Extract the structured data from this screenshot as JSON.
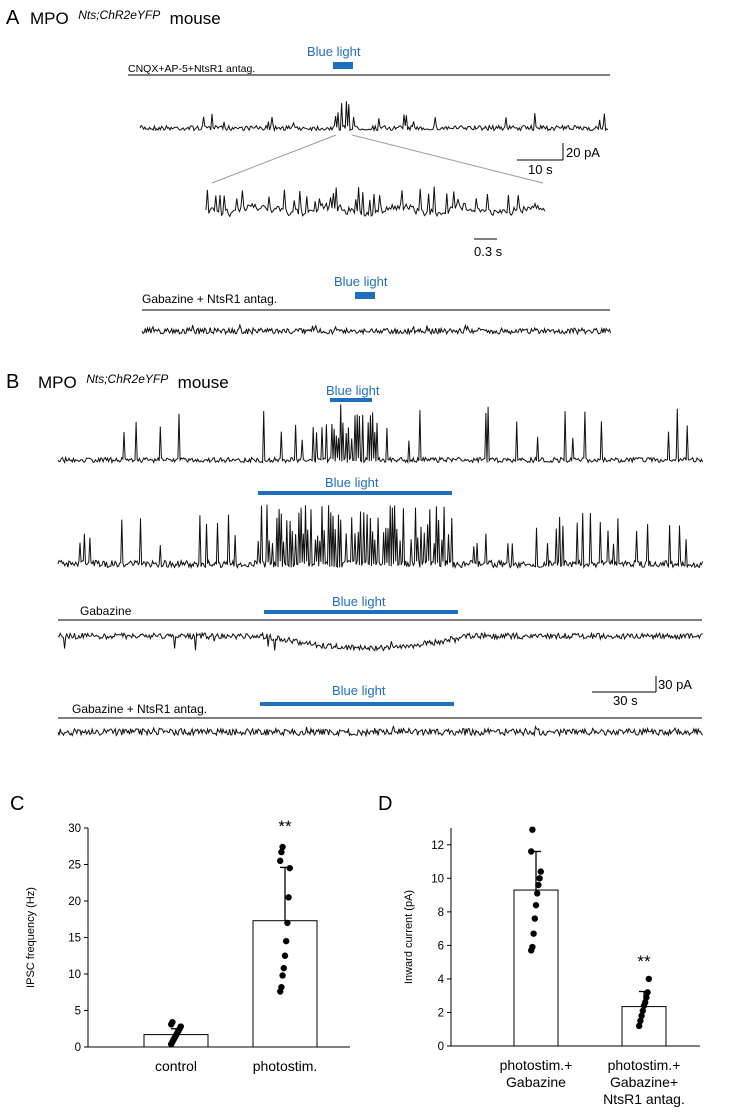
{
  "colors": {
    "blue_light": "#1f6fbf",
    "trace": "#111111"
  },
  "panel_a": {
    "letter": "A",
    "title_main": "MPO",
    "title_sup": "Nts;ChR2eYFP",
    "title_end": "mouse",
    "cond1": "CNQX+AP-5+NtsR1 antag.",
    "blue1": "Blue light",
    "scale_y": "20 pA",
    "scale_x": "10 s",
    "zoom_scale_x": "0.3 s",
    "cond2": "Gabazine + NtsR1 antag.",
    "blue2": "Blue light"
  },
  "panel_b": {
    "letter": "B",
    "title_main": "MPO",
    "title_sup": "Nts;ChR2eYFP",
    "title_end": "mouse",
    "blue1": "Blue light",
    "blue2": "Blue light",
    "cond3": "Gabazine",
    "blue3": "Blue light",
    "cond4": "Gabazine + NtsR1 antag.",
    "blue4": "Blue light",
    "scale_y": "30 pA",
    "scale_x": "30 s"
  },
  "chart_data": [
    {
      "panel": "C",
      "type": "bar",
      "categories": [
        "control",
        "photostim."
      ],
      "values": [
        1.7,
        17.3
      ],
      "errors": [
        0.8,
        7.3
      ],
      "points": [
        [
          0.4,
          0.7,
          1.0,
          1.3,
          1.6,
          1.9,
          2.2,
          2.5,
          2.8,
          3.1,
          3.4
        ],
        [
          7.6,
          8.2,
          9.8,
          10.8,
          12.5,
          14.5,
          17.0,
          20.5,
          24.5,
          25.5,
          26.7,
          27.4
        ]
      ],
      "significance": [
        "",
        "**"
      ],
      "ylabel": "IPSC frequency (Hz)",
      "ylim": [
        0,
        30
      ],
      "yticks": [
        0,
        5,
        10,
        15,
        20,
        25,
        30
      ]
    },
    {
      "panel": "D",
      "type": "bar",
      "categories": [
        "photostim.+\nGabazine",
        "photostim.+\nGabazine+\nNtsR1 antag."
      ],
      "values": [
        9.3,
        2.35
      ],
      "errors": [
        2.3,
        0.9
      ],
      "points": [
        [
          5.7,
          5.9,
          6.7,
          7.6,
          8.4,
          9.1,
          9.6,
          10.0,
          10.4,
          11.6,
          12.9
        ],
        [
          1.2,
          1.5,
          1.8,
          2.1,
          2.4,
          2.6,
          2.9,
          3.2,
          4.0
        ]
      ],
      "significance": [
        "",
        "**"
      ],
      "ylabel": "Inward current (pA)",
      "ylim": [
        0,
        13
      ],
      "yticks": [
        0,
        2,
        4,
        6,
        8,
        10,
        12
      ]
    }
  ]
}
